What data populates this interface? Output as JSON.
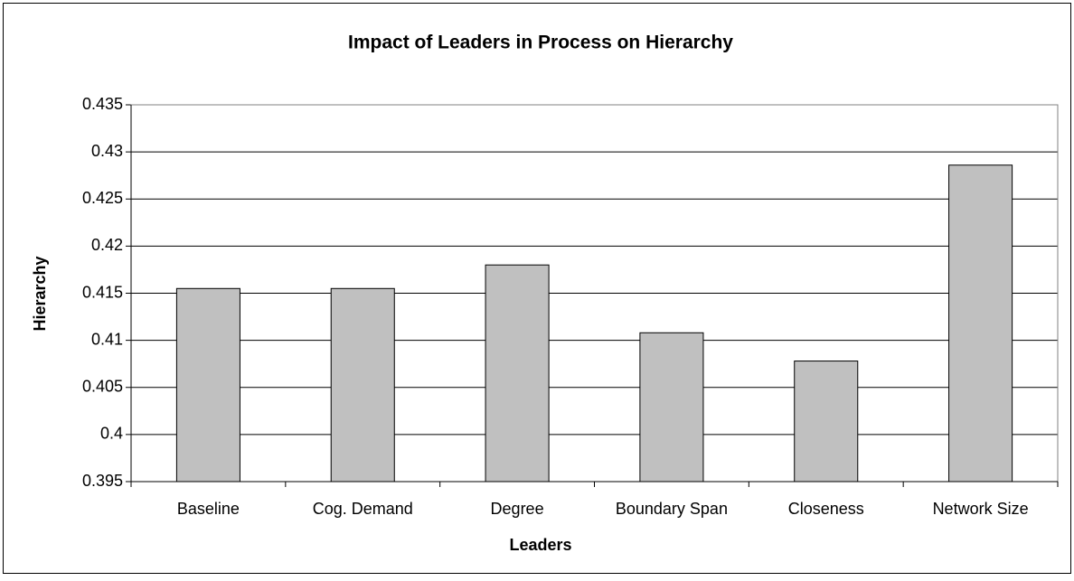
{
  "chart_data": {
    "type": "bar",
    "title": "Impact of Leaders in Process on Hierarchy",
    "x_label": "Leaders",
    "y_label": "Hierarchy",
    "categories": [
      "Baseline",
      "Cog. Demand",
      "Degree",
      "Boundary Span",
      "Closeness",
      "Network Size"
    ],
    "values": [
      0.4155,
      0.4155,
      0.418,
      0.4108,
      0.4078,
      0.4286
    ],
    "color": "#c0c0c0",
    "ylim": [
      0.395,
      0.435
    ],
    "yticks": [
      0.395,
      0.4,
      0.405,
      0.41,
      0.415,
      0.42,
      0.425,
      0.43,
      0.435
    ],
    "grid": true
  }
}
